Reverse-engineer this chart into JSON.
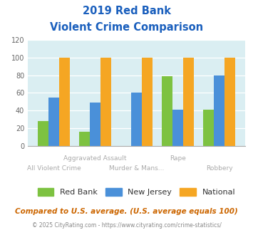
{
  "title_line1": "2019 Red Bank",
  "title_line2": "Violent Crime Comparison",
  "categories": [
    "All Violent Crime",
    "Aggravated Assault",
    "Murder & Mans...",
    "Rape",
    "Robbery"
  ],
  "label_top": [
    "",
    "Aggravated Assault",
    "",
    "Rape",
    ""
  ],
  "label_bot": [
    "All Violent Crime",
    "",
    "Murder & Mans...",
    "",
    "Robbery"
  ],
  "red_bank": [
    28,
    16,
    0,
    79,
    41
  ],
  "new_jersey": [
    55,
    49,
    60,
    41,
    80
  ],
  "national": [
    100,
    100,
    100,
    100,
    100
  ],
  "color_redbank": "#7dc241",
  "color_nj": "#4a90d9",
  "color_national": "#f5a623",
  "ylim": [
    0,
    120
  ],
  "yticks": [
    0,
    20,
    40,
    60,
    80,
    100,
    120
  ],
  "bg_color": "#daeef2",
  "title_color": "#1a5fbd",
  "legend_labels": [
    "Red Bank",
    "New Jersey",
    "National"
  ],
  "footer_text": "Compared to U.S. average. (U.S. average equals 100)",
  "copyright_text": "© 2025 CityRating.com - https://www.cityrating.com/crime-statistics/",
  "footer_color": "#cc6600",
  "copyright_color": "#888888"
}
